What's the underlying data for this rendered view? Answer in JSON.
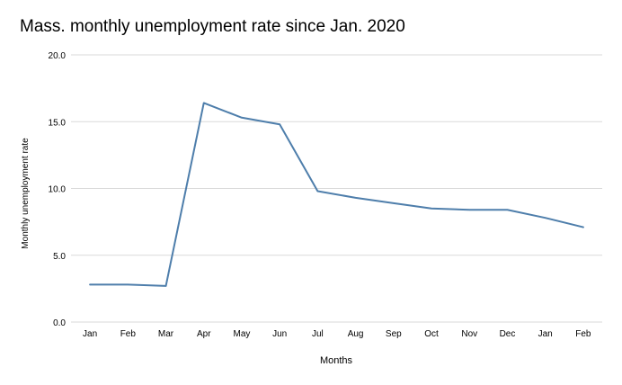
{
  "chart_data": {
    "type": "line",
    "title": "Mass. monthly unemployment rate since Jan. 2020",
    "xlabel": "Months",
    "ylabel": "Monthly unemployment rate",
    "categories": [
      "Jan",
      "Feb",
      "Mar",
      "Apr",
      "May",
      "Jun",
      "Jul",
      "Aug",
      "Sep",
      "Oct",
      "Nov",
      "Dec",
      "Jan",
      "Feb"
    ],
    "series": [
      {
        "values": [
          2.8,
          2.8,
          2.7,
          16.4,
          15.3,
          14.8,
          9.8,
          9.3,
          8.9,
          8.5,
          8.4,
          8.4,
          7.8,
          7.1
        ]
      }
    ],
    "ylim": [
      0,
      20
    ],
    "yticks": [
      "0.0",
      "5.0",
      "10.0",
      "15.0",
      "20.0"
    ],
    "grid": true,
    "legend": "none",
    "line_color": "#4e7eab",
    "grid_color": "#d9d9d9"
  }
}
